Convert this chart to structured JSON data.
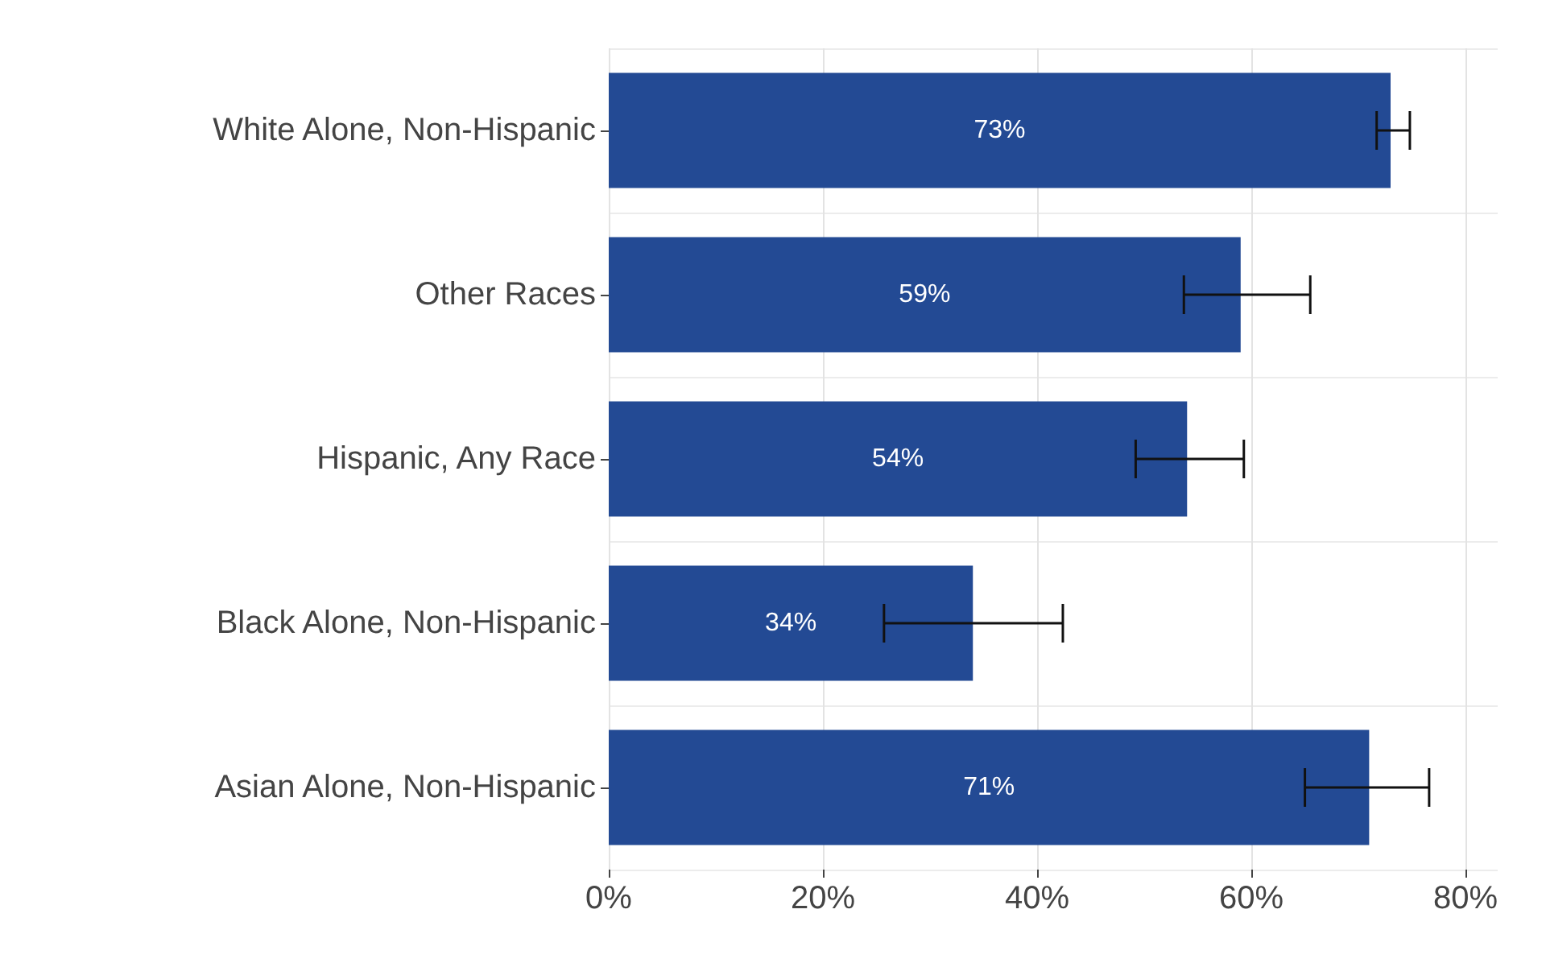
{
  "chart_data": {
    "type": "bar",
    "orientation": "horizontal",
    "categories": [
      "White Alone, Non-Hispanic",
      "Other Races",
      "Hispanic, Any Race",
      "Black Alone, Non-Hispanic",
      "Asian Alone, Non-Hispanic"
    ],
    "values": [
      73,
      59,
      54,
      34,
      71
    ],
    "value_labels": [
      "73%",
      "59%",
      "54%",
      "34%",
      "71%"
    ],
    "errors": [
      [
        71.7,
        74.8
      ],
      [
        53.7,
        65.5
      ],
      [
        49.2,
        59.3
      ],
      [
        25.7,
        42.4
      ],
      [
        65,
        76.6
      ]
    ],
    "color": "#234a94",
    "xlim": [
      0,
      83
    ],
    "xticks": [
      {
        "value": 0,
        "label": "0%"
      },
      {
        "value": 20,
        "label": "20%"
      },
      {
        "value": 40,
        "label": "40%"
      },
      {
        "value": 60,
        "label": "60%"
      },
      {
        "value": 80,
        "label": "80%"
      }
    ],
    "grid": true
  }
}
